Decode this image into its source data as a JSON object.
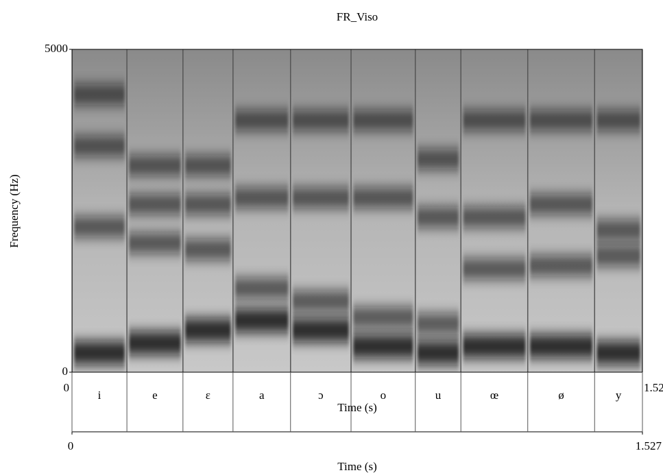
{
  "chart_data": {
    "type": "spectrogram",
    "title": "FR_Viso",
    "ylabel": "Frequency (Hz)",
    "xlabel": "Time (s)",
    "ylim": [
      0,
      5000
    ],
    "yticks": [
      0,
      5000
    ],
    "xlim": [
      0,
      1.527
    ],
    "xticks": [
      0,
      1.527
    ],
    "labels": [
      "i",
      "e",
      "ɛ",
      "a",
      "ɔ",
      "o",
      "u",
      "œ",
      "ø",
      "y"
    ],
    "boundaries": [
      0,
      0.147,
      0.297,
      0.431,
      0.585,
      0.747,
      0.919,
      1.041,
      1.22,
      1.399,
      1.527
    ],
    "formants": [
      [
        300,
        2250,
        3500,
        4300
      ],
      [
        450,
        2000,
        2600,
        3200
      ],
      [
        650,
        1900,
        2600,
        3200
      ],
      [
        800,
        1300,
        2700,
        3900
      ],
      [
        650,
        1100,
        2700,
        3900
      ],
      [
        400,
        850,
        2700,
        3900
      ],
      [
        300,
        750,
        2400,
        3300
      ],
      [
        400,
        1600,
        2400,
        3900
      ],
      [
        400,
        1650,
        2600,
        3900
      ],
      [
        300,
        1800,
        2200,
        3900
      ]
    ]
  }
}
